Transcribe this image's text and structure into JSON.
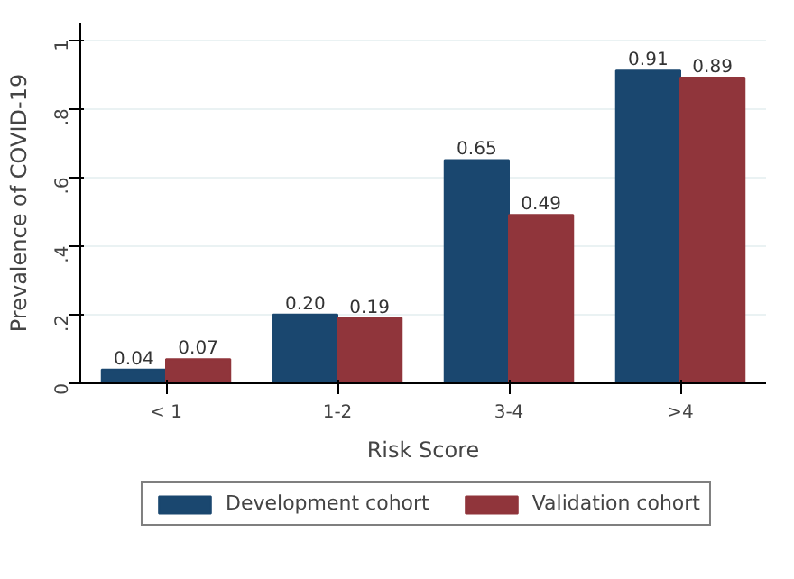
{
  "chart_data": {
    "type": "bar",
    "xlabel": "Risk Score",
    "ylabel": "Prevalence of COVID-19",
    "categories": [
      "< 1",
      "1-2",
      "3-4",
      ">4"
    ],
    "series": [
      {
        "name": "Development cohort",
        "color": "#1a476f",
        "values": [
          0.04,
          0.2,
          0.65,
          0.91
        ],
        "value_labels": [
          "0.04",
          "0.20",
          "0.65",
          "0.91"
        ]
      },
      {
        "name": "Validation cohort",
        "color": "#90353b",
        "values": [
          0.07,
          0.19,
          0.49,
          0.89
        ],
        "value_labels": [
          "0.07",
          "0.19",
          "0.49",
          "0.89"
        ]
      }
    ],
    "ylim": [
      0,
      1.05
    ],
    "yticks": [
      0,
      {
        "value": 0.2,
        "label": ".2"
      },
      {
        "value": 0.4,
        "label": ".4"
      },
      {
        "value": 0.6,
        "label": ".6"
      },
      {
        "value": 0.8,
        "label": ".8"
      },
      1
    ],
    "grid": "y",
    "legend": "bottom"
  }
}
